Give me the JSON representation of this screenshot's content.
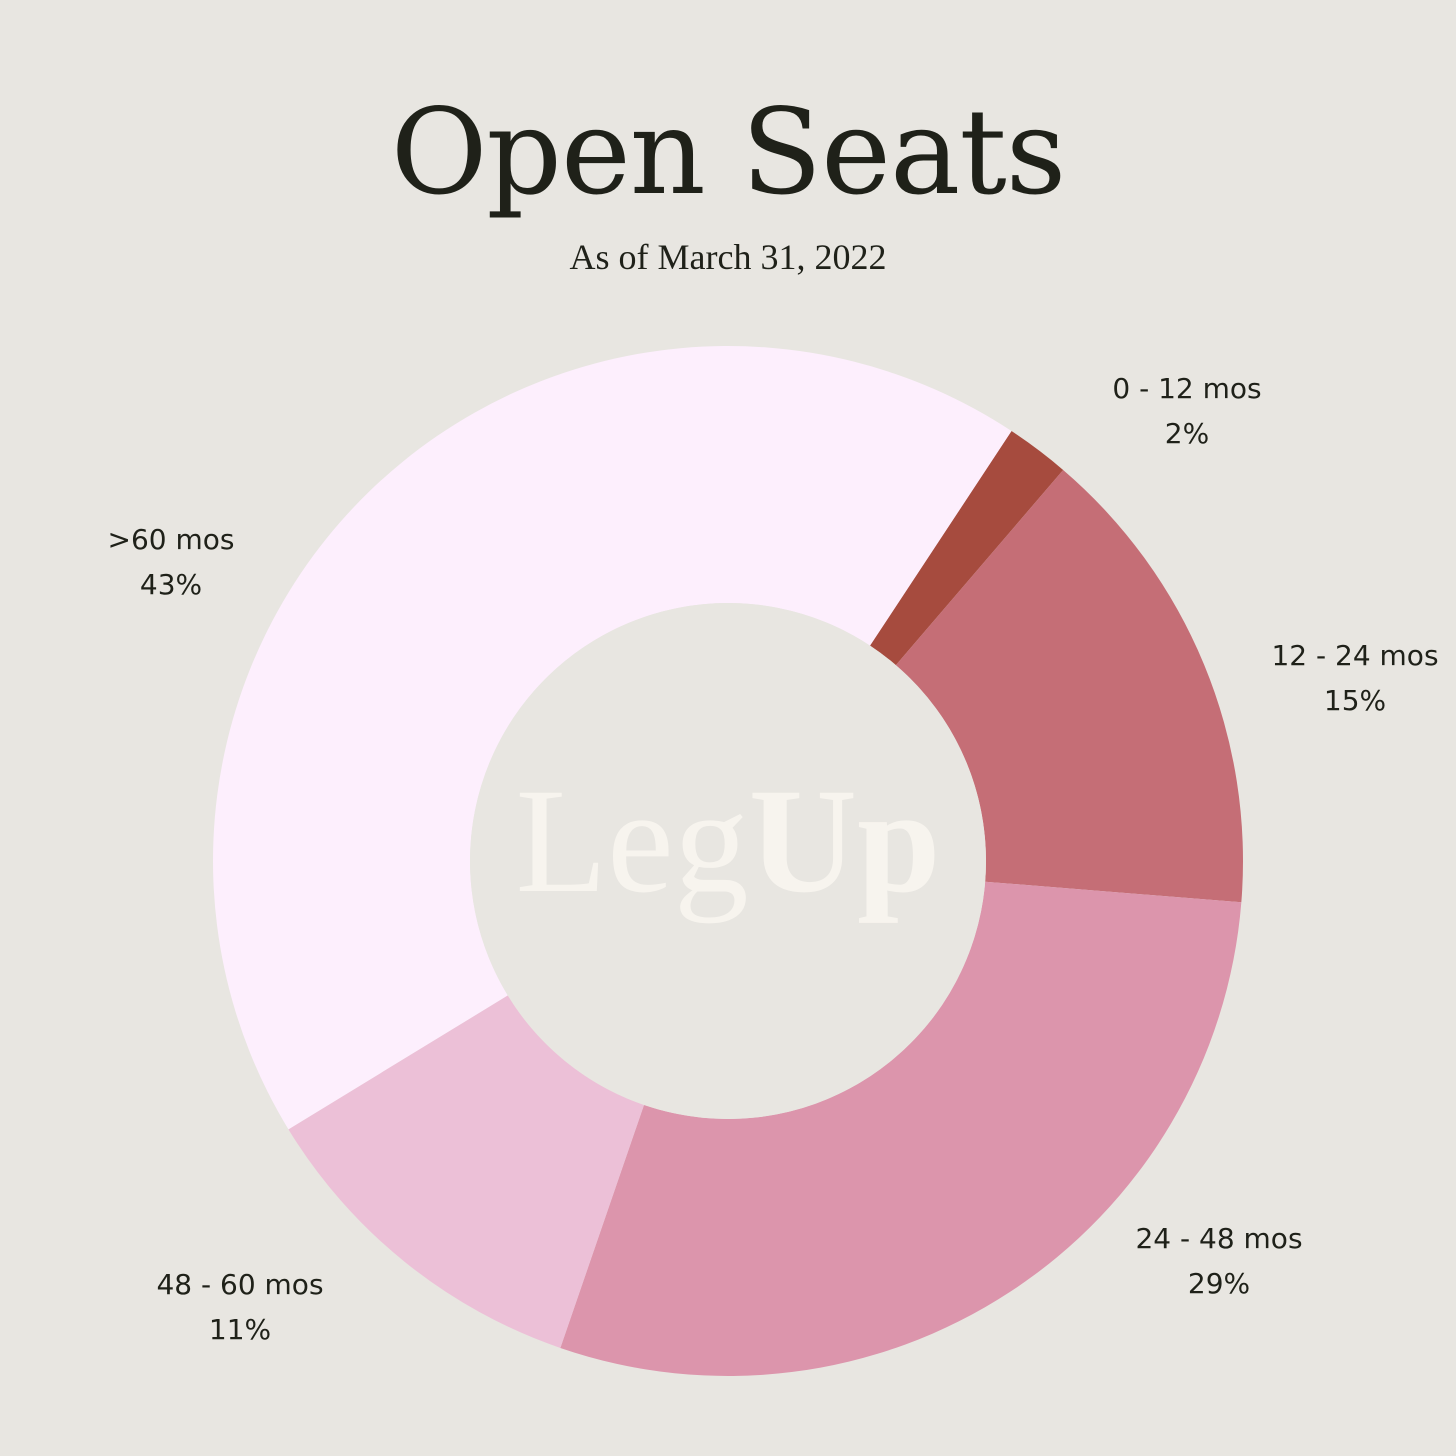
{
  "title": "Open Seats",
  "subtitle": "As of March 31, 2022",
  "logo": {
    "light": "Leg",
    "bold": "Up"
  },
  "chart_data": {
    "type": "pie",
    "donut": true,
    "title": "Open Seats",
    "subtitle": "As of March 31, 2022",
    "slices": [
      {
        "label": "0 - 12 mos",
        "value": 2,
        "display": "2%",
        "color": "#a64b3e"
      },
      {
        "label": "12 - 24 mos",
        "value": 15,
        "display": "15%",
        "color": "#c56e76"
      },
      {
        "label": "24 - 48 mos",
        "value": 29,
        "display": "29%",
        "color": "#dc95ac"
      },
      {
        "label": "48 - 60 mos",
        "value": 11,
        "display": "11%",
        "color": "#ecc0d7"
      },
      {
        "label": ">60 mos",
        "value": 43,
        "display": "43%",
        "color": "#fdeffd"
      }
    ]
  }
}
